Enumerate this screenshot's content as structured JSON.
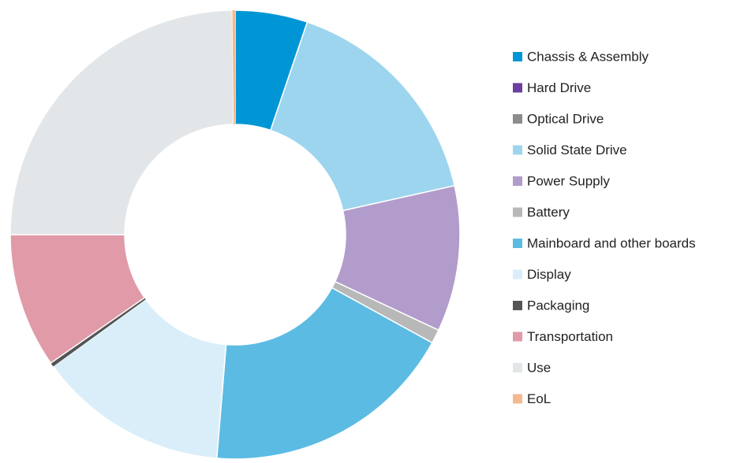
{
  "chart_data": {
    "type": "donut",
    "categories": [
      "Chassis & Assembly",
      "Hard Drive",
      "Optical Drive",
      "Solid State Drive",
      "Power Supply",
      "Battery",
      "Mainboard and other boards",
      "Display",
      "Packaging",
      "Transportation",
      "Use",
      "EoL"
    ],
    "values": [
      5.2,
      0,
      0,
      16.3,
      10.5,
      1.0,
      18.3,
      13.7,
      0.3,
      9.7,
      24.8,
      0.2
    ],
    "colors": [
      "#0096d6",
      "#6b3fa0",
      "#8c8c8c",
      "#9dd5ef",
      "#b29ccb",
      "#b8b8b8",
      "#5bbbe3",
      "#d9eef9",
      "#555555",
      "#e09aa8",
      "#e3e6e8",
      "#f4b98f"
    ],
    "legend": "right"
  }
}
